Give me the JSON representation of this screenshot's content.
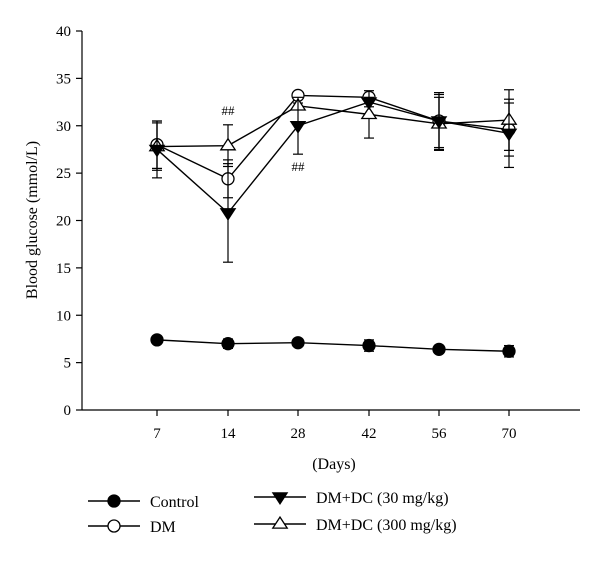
{
  "chart_data": {
    "type": "line",
    "title": "",
    "xlabel": "(Days)",
    "ylabel": "Blood glucose (mmol/L)",
    "categories": [
      "7",
      "14",
      "28",
      "42",
      "56",
      "70"
    ],
    "ylim": [
      0,
      40
    ],
    "yticks": [
      0,
      5,
      10,
      15,
      20,
      25,
      30,
      35,
      40
    ],
    "grid": false,
    "legend_position": "bottom",
    "series": [
      {
        "name": "Control",
        "marker": "filled-circle",
        "values": [
          7.4,
          7.0,
          7.1,
          6.8,
          6.4,
          6.2
        ],
        "errors": [
          0.3,
          0.5,
          0.3,
          0.6,
          0.4,
          0.6
        ]
      },
      {
        "name": "DM",
        "marker": "open-circle",
        "values": [
          28.0,
          24.4,
          33.2,
          33.0,
          30.5,
          29.6
        ],
        "errors": [
          2.5,
          2.0,
          0.3,
          0.3,
          2.8,
          2.8
        ]
      },
      {
        "name": "DM+DC (30 mg/kg)",
        "marker": "filled-triangle-down",
        "values": [
          27.5,
          20.8,
          30.0,
          32.5,
          30.5,
          29.2
        ],
        "errors": [
          3.0,
          5.2,
          3.0,
          0.5,
          3.0,
          3.6
        ]
      },
      {
        "name": "DM+DC (300 mg/kg)",
        "marker": "open-triangle-up",
        "values": [
          27.8,
          27.9,
          32.1,
          31.2,
          30.2,
          30.6
        ],
        "errors": [
          2.5,
          2.2,
          0.3,
          2.5,
          2.8,
          3.2
        ]
      }
    ],
    "annotations": [
      {
        "text": "##",
        "category": "14",
        "position": "above",
        "series": "DM+DC (300 mg/kg)"
      },
      {
        "text": "##",
        "category": "28",
        "position": "below",
        "series": "DM+DC (30 mg/kg)"
      }
    ]
  }
}
